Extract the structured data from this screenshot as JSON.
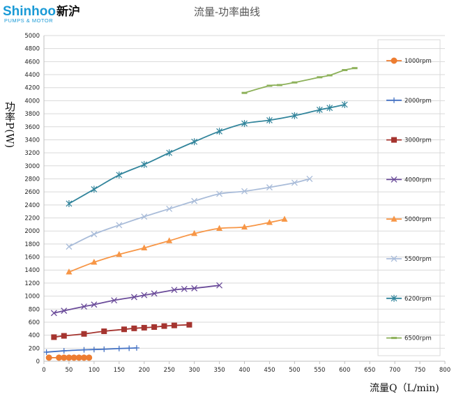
{
  "logo": {
    "brand": "Shinhoo",
    "brand_cn": "新沪",
    "tagline": "PUMPS & MOTOR"
  },
  "colors": {
    "brand": "#1a9ad6",
    "axis": "#bfbfbf",
    "grid": "#d9d9d9"
  },
  "chart_data": {
    "type": "line",
    "title": "流量-功率曲线",
    "xlabel": "流量Q（L/min)",
    "ylabel": "功率P(W)",
    "xlim": [
      0,
      800
    ],
    "ylim": [
      0,
      5000
    ],
    "x_ticks": [
      0,
      50,
      100,
      150,
      200,
      250,
      300,
      350,
      400,
      450,
      500,
      550,
      600,
      650,
      700,
      750,
      800
    ],
    "y_ticks": [
      0,
      200,
      400,
      600,
      800,
      1000,
      1200,
      1400,
      1600,
      1800,
      2000,
      2200,
      2400,
      2600,
      2800,
      3000,
      3200,
      3400,
      3600,
      3800,
      4000,
      4200,
      4400,
      4600,
      4800,
      5000
    ],
    "grid": "horizontal",
    "legend_position": "right",
    "series": [
      {
        "name": "1000rpm",
        "color": "#ed7d31",
        "marker": "circle",
        "points": [
          [
            10,
            55
          ],
          [
            30,
            55
          ],
          [
            40,
            55
          ],
          [
            50,
            55
          ],
          [
            60,
            55
          ],
          [
            70,
            55
          ],
          [
            80,
            55
          ],
          [
            90,
            55
          ]
        ]
      },
      {
        "name": "2000rpm",
        "color": "#4472c4",
        "marker": "plus",
        "points": [
          [
            5,
            140
          ],
          [
            40,
            160
          ],
          [
            80,
            175
          ],
          [
            100,
            180
          ],
          [
            120,
            185
          ],
          [
            150,
            195
          ],
          [
            170,
            200
          ],
          [
            185,
            205
          ]
        ]
      },
      {
        "name": "3000rpm",
        "color": "#a5342f",
        "marker": "square",
        "points": [
          [
            20,
            370
          ],
          [
            40,
            390
          ],
          [
            80,
            420
          ],
          [
            120,
            460
          ],
          [
            160,
            490
          ],
          [
            180,
            505
          ],
          [
            200,
            515
          ],
          [
            220,
            525
          ],
          [
            240,
            540
          ],
          [
            260,
            550
          ],
          [
            290,
            560
          ]
        ]
      },
      {
        "name": "4000rpm",
        "color": "#6b4c9a",
        "marker": "x",
        "points": [
          [
            20,
            740
          ],
          [
            40,
            775
          ],
          [
            80,
            840
          ],
          [
            100,
            870
          ],
          [
            140,
            935
          ],
          [
            180,
            985
          ],
          [
            200,
            1015
          ],
          [
            220,
            1040
          ],
          [
            260,
            1095
          ],
          [
            280,
            1110
          ],
          [
            300,
            1120
          ],
          [
            350,
            1165
          ]
        ]
      },
      {
        "name": "5000rpm",
        "color": "#f79646",
        "marker": "triangle",
        "points": [
          [
            50,
            1370
          ],
          [
            100,
            1520
          ],
          [
            150,
            1640
          ],
          [
            200,
            1740
          ],
          [
            250,
            1850
          ],
          [
            300,
            1960
          ],
          [
            350,
            2040
          ],
          [
            400,
            2060
          ],
          [
            450,
            2130
          ],
          [
            480,
            2180
          ]
        ]
      },
      {
        "name": "5500rpm",
        "color": "#a9bcd9",
        "marker": "x",
        "points": [
          [
            50,
            1760
          ],
          [
            100,
            1950
          ],
          [
            150,
            2090
          ],
          [
            200,
            2220
          ],
          [
            250,
            2340
          ],
          [
            300,
            2460
          ],
          [
            350,
            2570
          ],
          [
            400,
            2610
          ],
          [
            450,
            2670
          ],
          [
            500,
            2740
          ],
          [
            530,
            2800
          ]
        ]
      },
      {
        "name": "6200rpm",
        "color": "#31849b",
        "marker": "star",
        "points": [
          [
            50,
            2420
          ],
          [
            100,
            2640
          ],
          [
            150,
            2860
          ],
          [
            200,
            3020
          ],
          [
            250,
            3200
          ],
          [
            300,
            3370
          ],
          [
            350,
            3530
          ],
          [
            400,
            3650
          ],
          [
            450,
            3700
          ],
          [
            500,
            3770
          ],
          [
            550,
            3860
          ],
          [
            570,
            3890
          ],
          [
            600,
            3940
          ]
        ]
      },
      {
        "name": "6500rpm",
        "color": "#8db15a",
        "marker": "dash",
        "points": [
          [
            400,
            4120
          ],
          [
            450,
            4230
          ],
          [
            470,
            4240
          ],
          [
            500,
            4280
          ],
          [
            550,
            4360
          ],
          [
            570,
            4390
          ],
          [
            600,
            4470
          ],
          [
            620,
            4500
          ]
        ]
      }
    ]
  }
}
